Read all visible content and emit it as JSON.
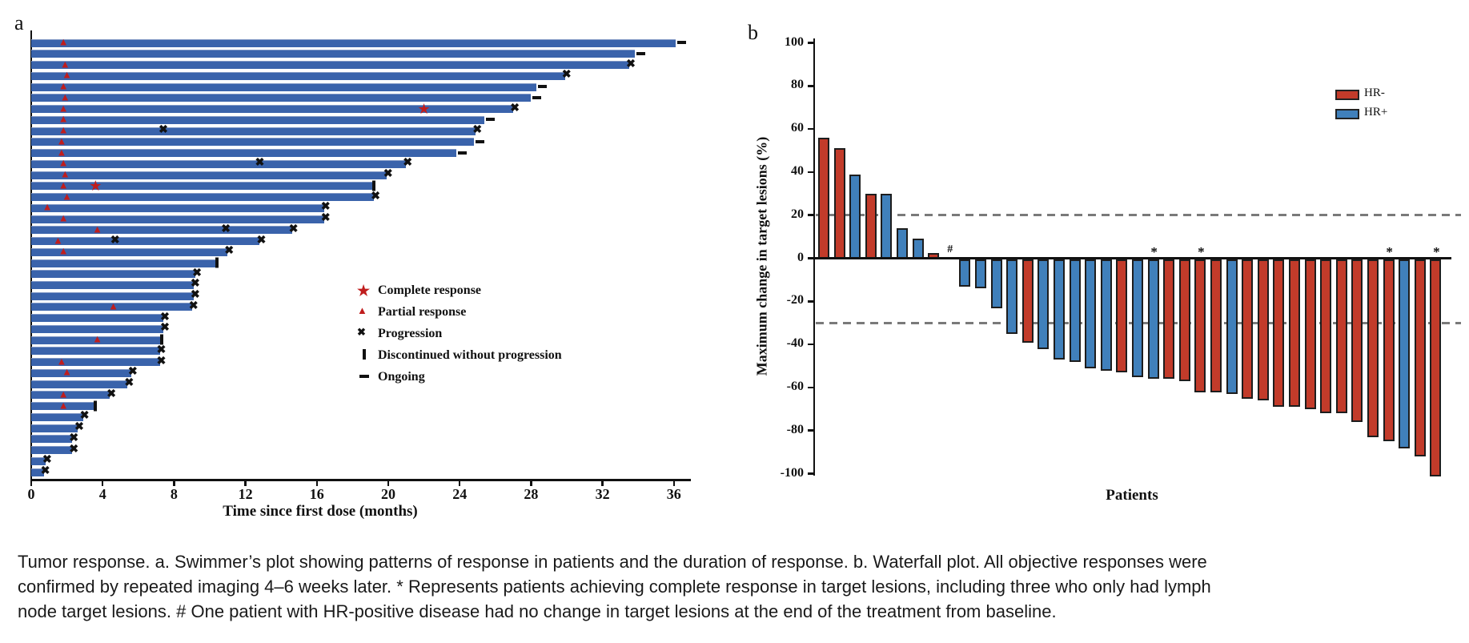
{
  "colors": {
    "swimmer_bar": "#3a63ab",
    "response_red": "#c01d1d",
    "marker_black": "#111111",
    "hr_neg_red": "#c23b2a",
    "hr_pos_blue": "#4080bb",
    "ref_line_gray": "#7a7a7a"
  },
  "caption": {
    "lines": [
      "Tumor response. a. Swimmer’s plot showing patterns of response in patients and the duration of response. b. Waterfall plot. All objective responses were",
      "confirmed by repeated imaging 4–6 weeks later. * Represents patients achieving complete response in target lesions, including three who only had lymph",
      "node target lesions. # One patient with HR-positive disease had no change in target lesions at the end of the treatment from baseline."
    ]
  },
  "chart_data": [
    {
      "type": "swimmer",
      "panel_label": "a",
      "xlabel": "Time since first dose (months)",
      "xlim": [
        0,
        37
      ],
      "xticks": [
        0,
        4,
        8,
        12,
        16,
        20,
        24,
        28,
        32,
        36
      ],
      "legend": [
        {
          "symbol": "star",
          "label": "Complete response"
        },
        {
          "symbol": "triangle",
          "label": "Partial response"
        },
        {
          "symbol": "x",
          "label": "Progression"
        },
        {
          "symbol": "bar",
          "label": "Discontinued without progression"
        },
        {
          "symbol": "dash",
          "label": "Ongoing"
        }
      ],
      "end_marker_meaning": {
        "pd": "Progression",
        "ongoing": "Ongoing",
        "disc": "Discontinued without progression"
      },
      "bars": [
        {
          "len": 36.1,
          "end": "ongoing",
          "marks": [
            {
              "t": 1.8,
              "type": "pr"
            }
          ]
        },
        {
          "len": 33.8,
          "end": "ongoing",
          "marks": []
        },
        {
          "len": 33.5,
          "end": "pd",
          "marks": [
            {
              "t": 1.9,
              "type": "pr"
            }
          ]
        },
        {
          "len": 29.9,
          "end": "pd",
          "marks": [
            {
              "t": 2.0,
              "type": "pr"
            }
          ]
        },
        {
          "len": 28.3,
          "end": "ongoing",
          "marks": [
            {
              "t": 1.8,
              "type": "pr"
            }
          ]
        },
        {
          "len": 28.0,
          "end": "ongoing",
          "marks": [
            {
              "t": 1.9,
              "type": "pr"
            }
          ]
        },
        {
          "len": 27.0,
          "end": "pd",
          "marks": [
            {
              "t": 1.8,
              "type": "pr"
            },
            {
              "t": 22.0,
              "type": "cr"
            }
          ]
        },
        {
          "len": 25.4,
          "end": "ongoing",
          "marks": [
            {
              "t": 1.8,
              "type": "pr"
            }
          ]
        },
        {
          "len": 24.9,
          "end": "pd",
          "marks": [
            {
              "t": 1.8,
              "type": "pr"
            },
            {
              "t": 7.4,
              "type": "pd"
            }
          ]
        },
        {
          "len": 24.8,
          "end": "ongoing",
          "marks": [
            {
              "t": 1.7,
              "type": "pr"
            }
          ]
        },
        {
          "len": 23.8,
          "end": "ongoing",
          "marks": [
            {
              "t": 1.7,
              "type": "pr"
            }
          ]
        },
        {
          "len": 21.0,
          "end": "pd",
          "marks": [
            {
              "t": 1.8,
              "type": "pr"
            },
            {
              "t": 12.8,
              "type": "pd"
            }
          ]
        },
        {
          "len": 19.9,
          "end": "pd",
          "marks": [
            {
              "t": 1.9,
              "type": "pr"
            }
          ]
        },
        {
          "len": 19.2,
          "end": "disc",
          "marks": [
            {
              "t": 1.8,
              "type": "pr"
            },
            {
              "t": 3.6,
              "type": "cr"
            }
          ]
        },
        {
          "len": 19.2,
          "end": "pd",
          "marks": [
            {
              "t": 2.0,
              "type": "pr"
            }
          ]
        },
        {
          "len": 16.4,
          "end": "pd",
          "marks": [
            {
              "t": 0.9,
              "type": "pr"
            }
          ]
        },
        {
          "len": 16.4,
          "end": "pd",
          "marks": [
            {
              "t": 1.8,
              "type": "pr"
            }
          ]
        },
        {
          "len": 14.6,
          "end": "pd",
          "marks": [
            {
              "t": 3.7,
              "type": "pr"
            },
            {
              "t": 10.9,
              "type": "pd"
            }
          ]
        },
        {
          "len": 12.8,
          "end": "pd",
          "marks": [
            {
              "t": 1.5,
              "type": "pr"
            },
            {
              "t": 4.7,
              "type": "pd"
            }
          ]
        },
        {
          "len": 11.0,
          "end": "pd",
          "marks": [
            {
              "t": 1.8,
              "type": "pr"
            }
          ]
        },
        {
          "len": 10.4,
          "end": "disc",
          "marks": []
        },
        {
          "len": 9.2,
          "end": "pd",
          "marks": []
        },
        {
          "len": 9.1,
          "end": "pd",
          "marks": []
        },
        {
          "len": 9.1,
          "end": "pd",
          "marks": []
        },
        {
          "len": 9.0,
          "end": "pd",
          "marks": [
            {
              "t": 4.6,
              "type": "pr"
            }
          ]
        },
        {
          "len": 7.4,
          "end": "pd",
          "marks": []
        },
        {
          "len": 7.4,
          "end": "pd",
          "marks": []
        },
        {
          "len": 7.3,
          "end": "disc",
          "marks": [
            {
              "t": 3.7,
              "type": "pr"
            }
          ]
        },
        {
          "len": 7.2,
          "end": "pd",
          "marks": []
        },
        {
          "len": 7.2,
          "end": "pd",
          "marks": [
            {
              "t": 1.7,
              "type": "pr"
            }
          ]
        },
        {
          "len": 5.6,
          "end": "pd",
          "marks": [
            {
              "t": 2.0,
              "type": "pr"
            }
          ]
        },
        {
          "len": 5.4,
          "end": "pd",
          "marks": []
        },
        {
          "len": 4.4,
          "end": "pd",
          "marks": [
            {
              "t": 1.8,
              "type": "pr"
            }
          ]
        },
        {
          "len": 3.6,
          "end": "disc",
          "marks": [
            {
              "t": 1.8,
              "type": "pr"
            }
          ]
        },
        {
          "len": 2.9,
          "end": "pd",
          "marks": []
        },
        {
          "len": 2.6,
          "end": "pd",
          "marks": []
        },
        {
          "len": 2.3,
          "end": "pd",
          "marks": []
        },
        {
          "len": 2.3,
          "end": "pd",
          "marks": []
        },
        {
          "len": 0.8,
          "end": "pd",
          "marks": []
        },
        {
          "len": 0.7,
          "end": "pd",
          "marks": []
        }
      ]
    },
    {
      "type": "waterfall",
      "panel_label": "b",
      "ylabel": "Maximum change in target lesions (%)",
      "xlabel": "Patients",
      "ylim": [
        -100,
        100
      ],
      "yticks": [
        100,
        80,
        60,
        40,
        20,
        0,
        -20,
        -40,
        -60,
        -80,
        -100
      ],
      "ref_lines": [
        20,
        -30
      ],
      "legend": [
        {
          "label": "HR-",
          "color": "#c23b2a"
        },
        {
          "label": "HR+",
          "color": "#4080bb"
        }
      ],
      "patients": [
        {
          "v": 56,
          "hr": "HR-"
        },
        {
          "v": 51,
          "hr": "HR-"
        },
        {
          "v": 39,
          "hr": "HR+"
        },
        {
          "v": 30,
          "hr": "HR-"
        },
        {
          "v": 30,
          "hr": "HR+"
        },
        {
          "v": 14,
          "hr": "HR+"
        },
        {
          "v": 9,
          "hr": "HR+"
        },
        {
          "v": 2.5,
          "hr": "HR-"
        },
        {
          "v": 0,
          "hr": "HR+",
          "note": "#"
        },
        {
          "v": -12,
          "hr": "HR+"
        },
        {
          "v": -13,
          "hr": "HR+"
        },
        {
          "v": -22,
          "hr": "HR+"
        },
        {
          "v": -34,
          "hr": "HR+"
        },
        {
          "v": -38,
          "hr": "HR-"
        },
        {
          "v": -41,
          "hr": "HR+"
        },
        {
          "v": -46,
          "hr": "HR+"
        },
        {
          "v": -47,
          "hr": "HR+"
        },
        {
          "v": -50,
          "hr": "HR+"
        },
        {
          "v": -51,
          "hr": "HR+"
        },
        {
          "v": -52,
          "hr": "HR-"
        },
        {
          "v": -54,
          "hr": "HR+"
        },
        {
          "v": -55,
          "hr": "HR+",
          "note": "*"
        },
        {
          "v": -55,
          "hr": "HR-"
        },
        {
          "v": -56,
          "hr": "HR-"
        },
        {
          "v": -61,
          "hr": "HR-",
          "note": "*"
        },
        {
          "v": -61,
          "hr": "HR-"
        },
        {
          "v": -62,
          "hr": "HR+"
        },
        {
          "v": -64,
          "hr": "HR-"
        },
        {
          "v": -65,
          "hr": "HR-"
        },
        {
          "v": -68,
          "hr": "HR-"
        },
        {
          "v": -68,
          "hr": "HR-"
        },
        {
          "v": -69,
          "hr": "HR-"
        },
        {
          "v": -71,
          "hr": "HR-"
        },
        {
          "v": -71,
          "hr": "HR-"
        },
        {
          "v": -75,
          "hr": "HR-"
        },
        {
          "v": -82,
          "hr": "HR-"
        },
        {
          "v": -84,
          "hr": "HR-",
          "note": "*"
        },
        {
          "v": -87,
          "hr": "HR+"
        },
        {
          "v": -91,
          "hr": "HR-"
        },
        {
          "v": -100,
          "hr": "HR-",
          "note": "*"
        }
      ]
    }
  ]
}
